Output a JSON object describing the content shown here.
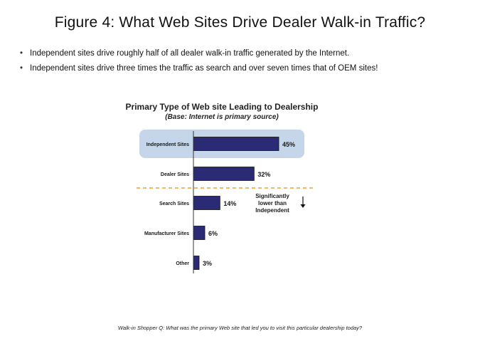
{
  "page": {
    "title": "Figure 4: What Web Sites Drive Dealer Walk-in Traffic?",
    "bullets": [
      "Independent sites drive roughly half of all dealer walk-in traffic generated by the Internet.",
      "Independent sites drive three times the traffic as search and over seven times that of OEM sites!"
    ],
    "footnote": "Walk-in Shopper Q: What was the primary Web site that led you to visit this particular dealership today?"
  },
  "chart_data": {
    "type": "bar",
    "orientation": "horizontal",
    "title": "Primary Type of Web site Leading to Dealership",
    "subtitle": "(Base: Internet is primary source)",
    "categories": [
      "Independent Sites",
      "Dealer Sites",
      "Search Sites",
      "Manufacturer Sites",
      "Other"
    ],
    "values": [
      45,
      32,
      14,
      6,
      3
    ],
    "value_labels": [
      "45%",
      "32%",
      "14%",
      "6%",
      "3%"
    ],
    "xlim": [
      0,
      45
    ],
    "highlighted_category": "Independent Sites",
    "annotation": {
      "lines": [
        "Significantly",
        "lower than",
        "Independent"
      ],
      "arrow": "down"
    },
    "colors": {
      "bar": "#2b2a74",
      "highlight": "#c5d6ea",
      "divider": "#f0a030"
    },
    "grid": false,
    "legend": "none"
  }
}
